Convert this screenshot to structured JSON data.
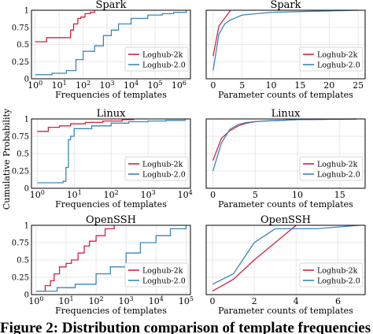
{
  "shared": {
    "ylabel": "Cumulative Probability",
    "series_names": [
      "Loghub-2k",
      "Loghub-2.0"
    ],
    "colors": {
      "Loghub-2k": "#d6213f",
      "Loghub-2.0": "#3a86b8"
    }
  },
  "caption": "Figure 2: Distribution comparison of template frequencies",
  "chart_data": [
    {
      "type": "line",
      "title": "Spark",
      "xlabel": "Frequencies of templates",
      "xscale": "log",
      "xlim": [
        0.7,
        3000000
      ],
      "ylim": [
        0,
        1
      ],
      "legend": "right",
      "xticks": [
        {
          "v": 1,
          "base": "10",
          "exp": "0"
        },
        {
          "v": 10,
          "base": "10",
          "exp": "1"
        },
        {
          "v": 100,
          "base": "10",
          "exp": "2"
        },
        {
          "v": 1000,
          "base": "10",
          "exp": "3"
        },
        {
          "v": 10000,
          "base": "10",
          "exp": "4"
        },
        {
          "v": 100000,
          "base": "10",
          "exp": "5"
        },
        {
          "v": 1000000,
          "base": "10",
          "exp": "6"
        }
      ],
      "yticks": [
        {
          "v": 0,
          "label": "0"
        },
        {
          "v": 0.25,
          "label": "0.25"
        },
        {
          "v": 0.5,
          "label": "0.5"
        },
        {
          "v": 0.75,
          "label": "0.75"
        },
        {
          "v": 1,
          "label": "1"
        }
      ],
      "series": [
        {
          "name": "Loghub-2k",
          "step": true,
          "x": [
            1,
            3,
            30,
            40,
            60,
            80,
            120,
            200,
            300
          ],
          "y": [
            0.54,
            0.6,
            0.71,
            0.8,
            0.88,
            0.9,
            0.95,
            0.97,
            1.0
          ]
        },
        {
          "name": "Loghub-2.0",
          "step": true,
          "x": [
            1,
            5,
            20,
            50,
            100,
            300,
            700,
            1500,
            3000,
            10000,
            50000,
            200000,
            600000,
            2000000
          ],
          "y": [
            0.06,
            0.08,
            0.12,
            0.28,
            0.4,
            0.48,
            0.63,
            0.71,
            0.8,
            0.88,
            0.93,
            0.95,
            0.97,
            1.0
          ]
        }
      ]
    },
    {
      "type": "line",
      "title": "Spark",
      "xlabel": "Parameter counts of templates",
      "xscale": "linear",
      "xlim": [
        -1.2,
        26.2
      ],
      "ylim": [
        0,
        1
      ],
      "legend": "right",
      "xticks": [
        {
          "v": 0,
          "label": "0"
        },
        {
          "v": 5,
          "label": "5"
        },
        {
          "v": 10,
          "label": "10"
        },
        {
          "v": 15,
          "label": "15"
        },
        {
          "v": 20,
          "label": "20"
        },
        {
          "v": 25,
          "label": "25"
        }
      ],
      "yticks": [
        {
          "v": 0,
          "label": ""
        },
        {
          "v": 0.25,
          "label": ""
        },
        {
          "v": 0.5,
          "label": ""
        },
        {
          "v": 0.75,
          "label": ""
        },
        {
          "v": 1,
          "label": ""
        }
      ],
      "series": [
        {
          "name": "Loghub-2k",
          "step": false,
          "x": [
            0,
            1,
            3
          ],
          "y": [
            0.33,
            0.77,
            1.0
          ]
        },
        {
          "name": "Loghub-2.0",
          "step": false,
          "x": [
            0,
            1,
            2,
            3,
            5,
            10,
            15,
            20,
            25
          ],
          "y": [
            0.12,
            0.65,
            0.8,
            0.86,
            0.93,
            0.97,
            0.98,
            0.99,
            1.0
          ]
        }
      ]
    },
    {
      "type": "line",
      "title": "Linux",
      "xlabel": "Frequencies of templates",
      "xscale": "log",
      "xlim": [
        0.7,
        14000
      ],
      "ylim": [
        0,
        1
      ],
      "legend": "right",
      "xticks": [
        {
          "v": 1,
          "base": "10",
          "exp": "0"
        },
        {
          "v": 10,
          "base": "10",
          "exp": "1"
        },
        {
          "v": 100,
          "base": "10",
          "exp": "2"
        },
        {
          "v": 1000,
          "base": "10",
          "exp": "3"
        },
        {
          "v": 10000,
          "base": "10",
          "exp": "4"
        }
      ],
      "yticks": [
        {
          "v": 0,
          "label": "0"
        },
        {
          "v": 0.25,
          "label": "0.25"
        },
        {
          "v": 0.5,
          "label": "0.5"
        },
        {
          "v": 0.75,
          "label": "0.75"
        },
        {
          "v": 1,
          "label": "1"
        }
      ],
      "series": [
        {
          "name": "Loghub-2k",
          "step": true,
          "x": [
            1,
            2,
            4,
            8,
            20,
            60,
            200,
            400
          ],
          "y": [
            0.82,
            0.88,
            0.9,
            0.93,
            0.95,
            0.97,
            0.99,
            1.0
          ]
        },
        {
          "name": "Loghub-2.0",
          "step": true,
          "x": [
            1,
            5,
            6,
            7,
            8,
            10,
            30,
            100,
            300,
            1000,
            3000,
            10000
          ],
          "y": [
            0.08,
            0.1,
            0.3,
            0.7,
            0.75,
            0.86,
            0.9,
            0.94,
            0.96,
            0.97,
            0.98,
            1.0
          ]
        }
      ]
    },
    {
      "type": "line",
      "title": "Linux",
      "xlabel": "Parameter counts of templates",
      "xscale": "linear",
      "xlim": [
        -0.8,
        18
      ],
      "ylim": [
        0,
        1
      ],
      "legend": "right",
      "xticks": [
        {
          "v": 0,
          "label": "0"
        },
        {
          "v": 5,
          "label": "5"
        },
        {
          "v": 10,
          "label": "10"
        },
        {
          "v": 15,
          "label": "15"
        }
      ],
      "yticks": [
        {
          "v": 0,
          "label": ""
        },
        {
          "v": 0.25,
          "label": ""
        },
        {
          "v": 0.5,
          "label": ""
        },
        {
          "v": 0.75,
          "label": ""
        },
        {
          "v": 1,
          "label": ""
        }
      ],
      "series": [
        {
          "name": "Loghub-2k",
          "step": false,
          "x": [
            0,
            1,
            2,
            3,
            4,
            5,
            6,
            8,
            10,
            17
          ],
          "y": [
            0.4,
            0.72,
            0.83,
            0.9,
            0.94,
            0.96,
            0.97,
            0.98,
            0.99,
            1.0
          ]
        },
        {
          "name": "Loghub-2.0",
          "step": false,
          "x": [
            0,
            1,
            2,
            3,
            4,
            5,
            6,
            8,
            10,
            17
          ],
          "y": [
            0.25,
            0.65,
            0.85,
            0.92,
            0.95,
            0.96,
            0.97,
            0.98,
            0.99,
            1.0
          ]
        }
      ]
    },
    {
      "type": "line",
      "title": "OpenSSH",
      "xlabel": "Frequencies of templates",
      "xscale": "log",
      "xlim": [
        0.7,
        140000
      ],
      "ylim": [
        0,
        1
      ],
      "legend": "right",
      "xticks": [
        {
          "v": 1,
          "base": "10",
          "exp": "0"
        },
        {
          "v": 10,
          "base": "10",
          "exp": "1"
        },
        {
          "v": 100,
          "base": "10",
          "exp": "2"
        },
        {
          "v": 1000,
          "base": "10",
          "exp": "3"
        },
        {
          "v": 10000,
          "base": "10",
          "exp": "4"
        },
        {
          "v": 100000,
          "base": "10",
          "exp": "5"
        }
      ],
      "yticks": [
        {
          "v": 0,
          "label": "0"
        },
        {
          "v": 0.25,
          "label": "0.25"
        },
        {
          "v": 0.5,
          "label": "0.5"
        },
        {
          "v": 0.75,
          "label": "0.75"
        },
        {
          "v": 1,
          "label": "1"
        }
      ],
      "series": [
        {
          "name": "Loghub-2k",
          "step": true,
          "x": [
            1,
            2,
            3,
            4,
            6,
            10,
            15,
            25,
            40,
            60,
            100,
            200,
            400
          ],
          "y": [
            0.05,
            0.13,
            0.2,
            0.3,
            0.4,
            0.45,
            0.5,
            0.6,
            0.7,
            0.77,
            0.85,
            0.95,
            1.0
          ]
        },
        {
          "name": "Loghub-2.0",
          "step": true,
          "x": [
            1,
            5,
            20,
            100,
            300,
            1000,
            3000,
            10000,
            30000,
            100000
          ],
          "y": [
            0.05,
            0.1,
            0.15,
            0.3,
            0.4,
            0.6,
            0.75,
            0.85,
            0.95,
            1.0
          ]
        }
      ]
    },
    {
      "type": "line",
      "title": "OpenSSH",
      "xlabel": "Parameter counts of templates",
      "xscale": "linear",
      "xlim": [
        -0.3,
        7.3
      ],
      "ylim": [
        0,
        1
      ],
      "legend": "right",
      "xticks": [
        {
          "v": 0,
          "label": "0"
        },
        {
          "v": 2,
          "label": "2"
        },
        {
          "v": 4,
          "label": "4"
        },
        {
          "v": 6,
          "label": "6"
        }
      ],
      "yticks": [
        {
          "v": 0,
          "label": ""
        },
        {
          "v": 0.25,
          "label": ""
        },
        {
          "v": 0.5,
          "label": ""
        },
        {
          "v": 0.75,
          "label": ""
        },
        {
          "v": 1,
          "label": ""
        }
      ],
      "series": [
        {
          "name": "Loghub-2k",
          "step": false,
          "x": [
            0,
            1,
            2,
            4
          ],
          "y": [
            0.05,
            0.22,
            0.5,
            1.0
          ]
        },
        {
          "name": "Loghub-2.0",
          "step": false,
          "x": [
            0,
            1,
            2,
            3,
            5,
            7
          ],
          "y": [
            0.15,
            0.3,
            0.75,
            0.95,
            0.95,
            1.0
          ]
        }
      ]
    }
  ]
}
